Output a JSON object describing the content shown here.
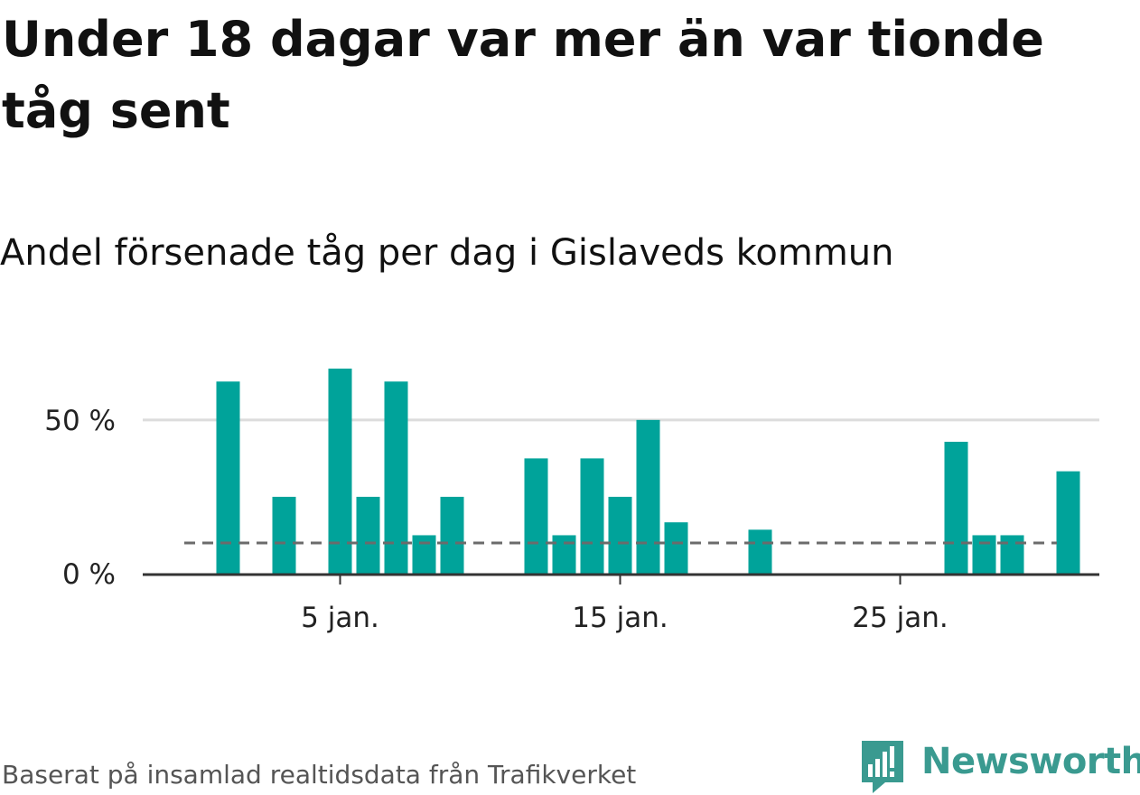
{
  "title": "Under 18 dagar var mer än var tionde tåg sent",
  "subtitle": "Andel försenade tåg per dag i Gislaveds kommun",
  "source": "Baserat på insamlad realtidsdata från Trafikverket",
  "brand": "Newsworthy",
  "colors": {
    "bar": "#00a39a",
    "reference": "#6b6b6b",
    "grid": "#dcdcdc",
    "axis": "#333333",
    "brand": "#3a9a90"
  },
  "chart_data": {
    "type": "bar",
    "x": [
      1,
      2,
      3,
      4,
      5,
      6,
      7,
      8,
      9,
      10,
      11,
      12,
      13,
      14,
      15,
      16,
      17,
      18,
      19,
      20,
      21,
      22,
      23,
      24,
      25,
      26,
      27,
      28,
      29,
      30,
      31
    ],
    "values": [
      62.5,
      0,
      25,
      0,
      66.7,
      25,
      62.5,
      12.5,
      25,
      0,
      0,
      37.5,
      12.5,
      37.5,
      25,
      50,
      16.7,
      0,
      0,
      14.3,
      0,
      0,
      0,
      0,
      0,
      0,
      42.9,
      12.5,
      12.5,
      0,
      33.3
    ],
    "reference_line": 10,
    "y_ticks": [
      0,
      50
    ],
    "y_tick_labels": [
      "0 %",
      "50 %"
    ],
    "x_ticks": [
      5,
      15,
      25
    ],
    "x_tick_labels": [
      "5 jan.",
      "15 jan.",
      "25 jan."
    ],
    "ylim": [
      0,
      72
    ],
    "grid": true,
    "xlabel": "",
    "ylabel": ""
  }
}
